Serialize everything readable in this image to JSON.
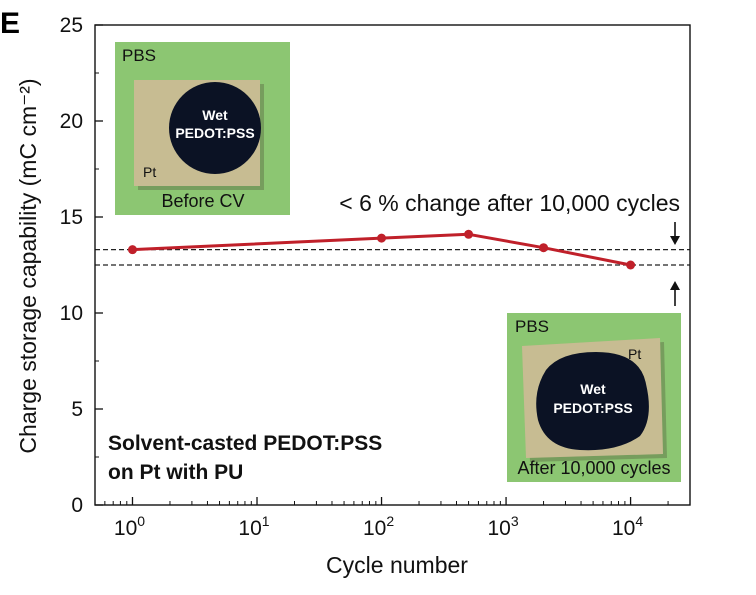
{
  "chart_data": {
    "type": "line",
    "panel_label": "E",
    "xlabel": "Cycle number",
    "ylabel": "Charge storage capability (mC cm⁻²)",
    "xscale": "log",
    "xlim": [
      0.5,
      30000
    ],
    "ylim": [
      0,
      25
    ],
    "yticks": [
      0,
      5,
      10,
      15,
      20,
      25
    ],
    "xticks": [
      {
        "value": 1,
        "base": "10",
        "exp": "0"
      },
      {
        "value": 10,
        "base": "10",
        "exp": "1"
      },
      {
        "value": 100,
        "base": "10",
        "exp": "2"
      },
      {
        "value": 1000,
        "base": "10",
        "exp": "3"
      },
      {
        "value": 10000,
        "base": "10",
        "exp": "4"
      }
    ],
    "series": [
      {
        "x": [
          1,
          100,
          500,
          2000,
          10000
        ],
        "y": [
          13.3,
          13.9,
          14.1,
          13.4,
          12.5
        ],
        "color": "#c0202a"
      }
    ],
    "reference_lines": [
      13.3,
      12.5
    ],
    "annotations": {
      "change_note": "< 6 % change after 10,000 cycles",
      "sample_note_line1": "Solvent-casted PEDOT:PSS",
      "sample_note_line2": "on Pt with PU"
    },
    "insets": [
      {
        "medium": "PBS",
        "substrate": "Pt",
        "film_line1": "Wet",
        "film_line2": "PEDOT:PSS",
        "caption": "Before CV"
      },
      {
        "medium": "PBS",
        "substrate": "Pt",
        "film_line1": "Wet",
        "film_line2": "PEDOT:PSS",
        "caption": "After 10,000 cycles"
      }
    ],
    "colors": {
      "line": "#c0202a",
      "inset_background": "#8cc672",
      "film": "#0b1224"
    },
    "grid": false
  }
}
